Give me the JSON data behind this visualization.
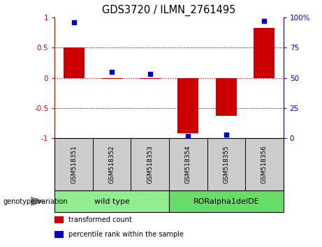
{
  "title": "GDS3720 / ILMN_2761495",
  "samples": [
    "GSM518351",
    "GSM518352",
    "GSM518353",
    "GSM518354",
    "GSM518355",
    "GSM518356"
  ],
  "bar_values": [
    0.5,
    -0.015,
    -0.015,
    -0.92,
    -0.63,
    0.82
  ],
  "percentile_values": [
    96,
    55,
    53,
    2,
    3,
    97
  ],
  "bar_color": "#cc0000",
  "dot_color": "#0000cc",
  "ylim_left": [
    -1,
    1
  ],
  "ylim_right": [
    0,
    100
  ],
  "yticks_left": [
    -1,
    -0.5,
    0,
    0.5,
    1
  ],
  "yticks_right": [
    0,
    25,
    50,
    75,
    100
  ],
  "ytick_labels_left": [
    "-1",
    "-0.5",
    "0",
    "0.5",
    "1"
  ],
  "ytick_labels_right": [
    "0",
    "25",
    "50",
    "75",
    "100%"
  ],
  "groups": [
    {
      "label": "wild type",
      "indices": [
        0,
        1,
        2
      ],
      "color": "#90ee90"
    },
    {
      "label": "RORalpha1delDE",
      "indices": [
        3,
        4,
        5
      ],
      "color": "#66dd66"
    }
  ],
  "genotype_label": "genotype/variation",
  "legend_items": [
    {
      "label": "transformed count",
      "color": "#cc0000"
    },
    {
      "label": "percentile rank within the sample",
      "color": "#0000cc"
    }
  ],
  "hline_color": "#cc0000",
  "hline_style": ":",
  "grid_color": "black",
  "grid_style": ":",
  "sample_box_color": "#cccccc",
  "bar_width": 0.55,
  "dot_size": 22,
  "figsize": [
    4.61,
    3.54
  ],
  "dpi": 100
}
